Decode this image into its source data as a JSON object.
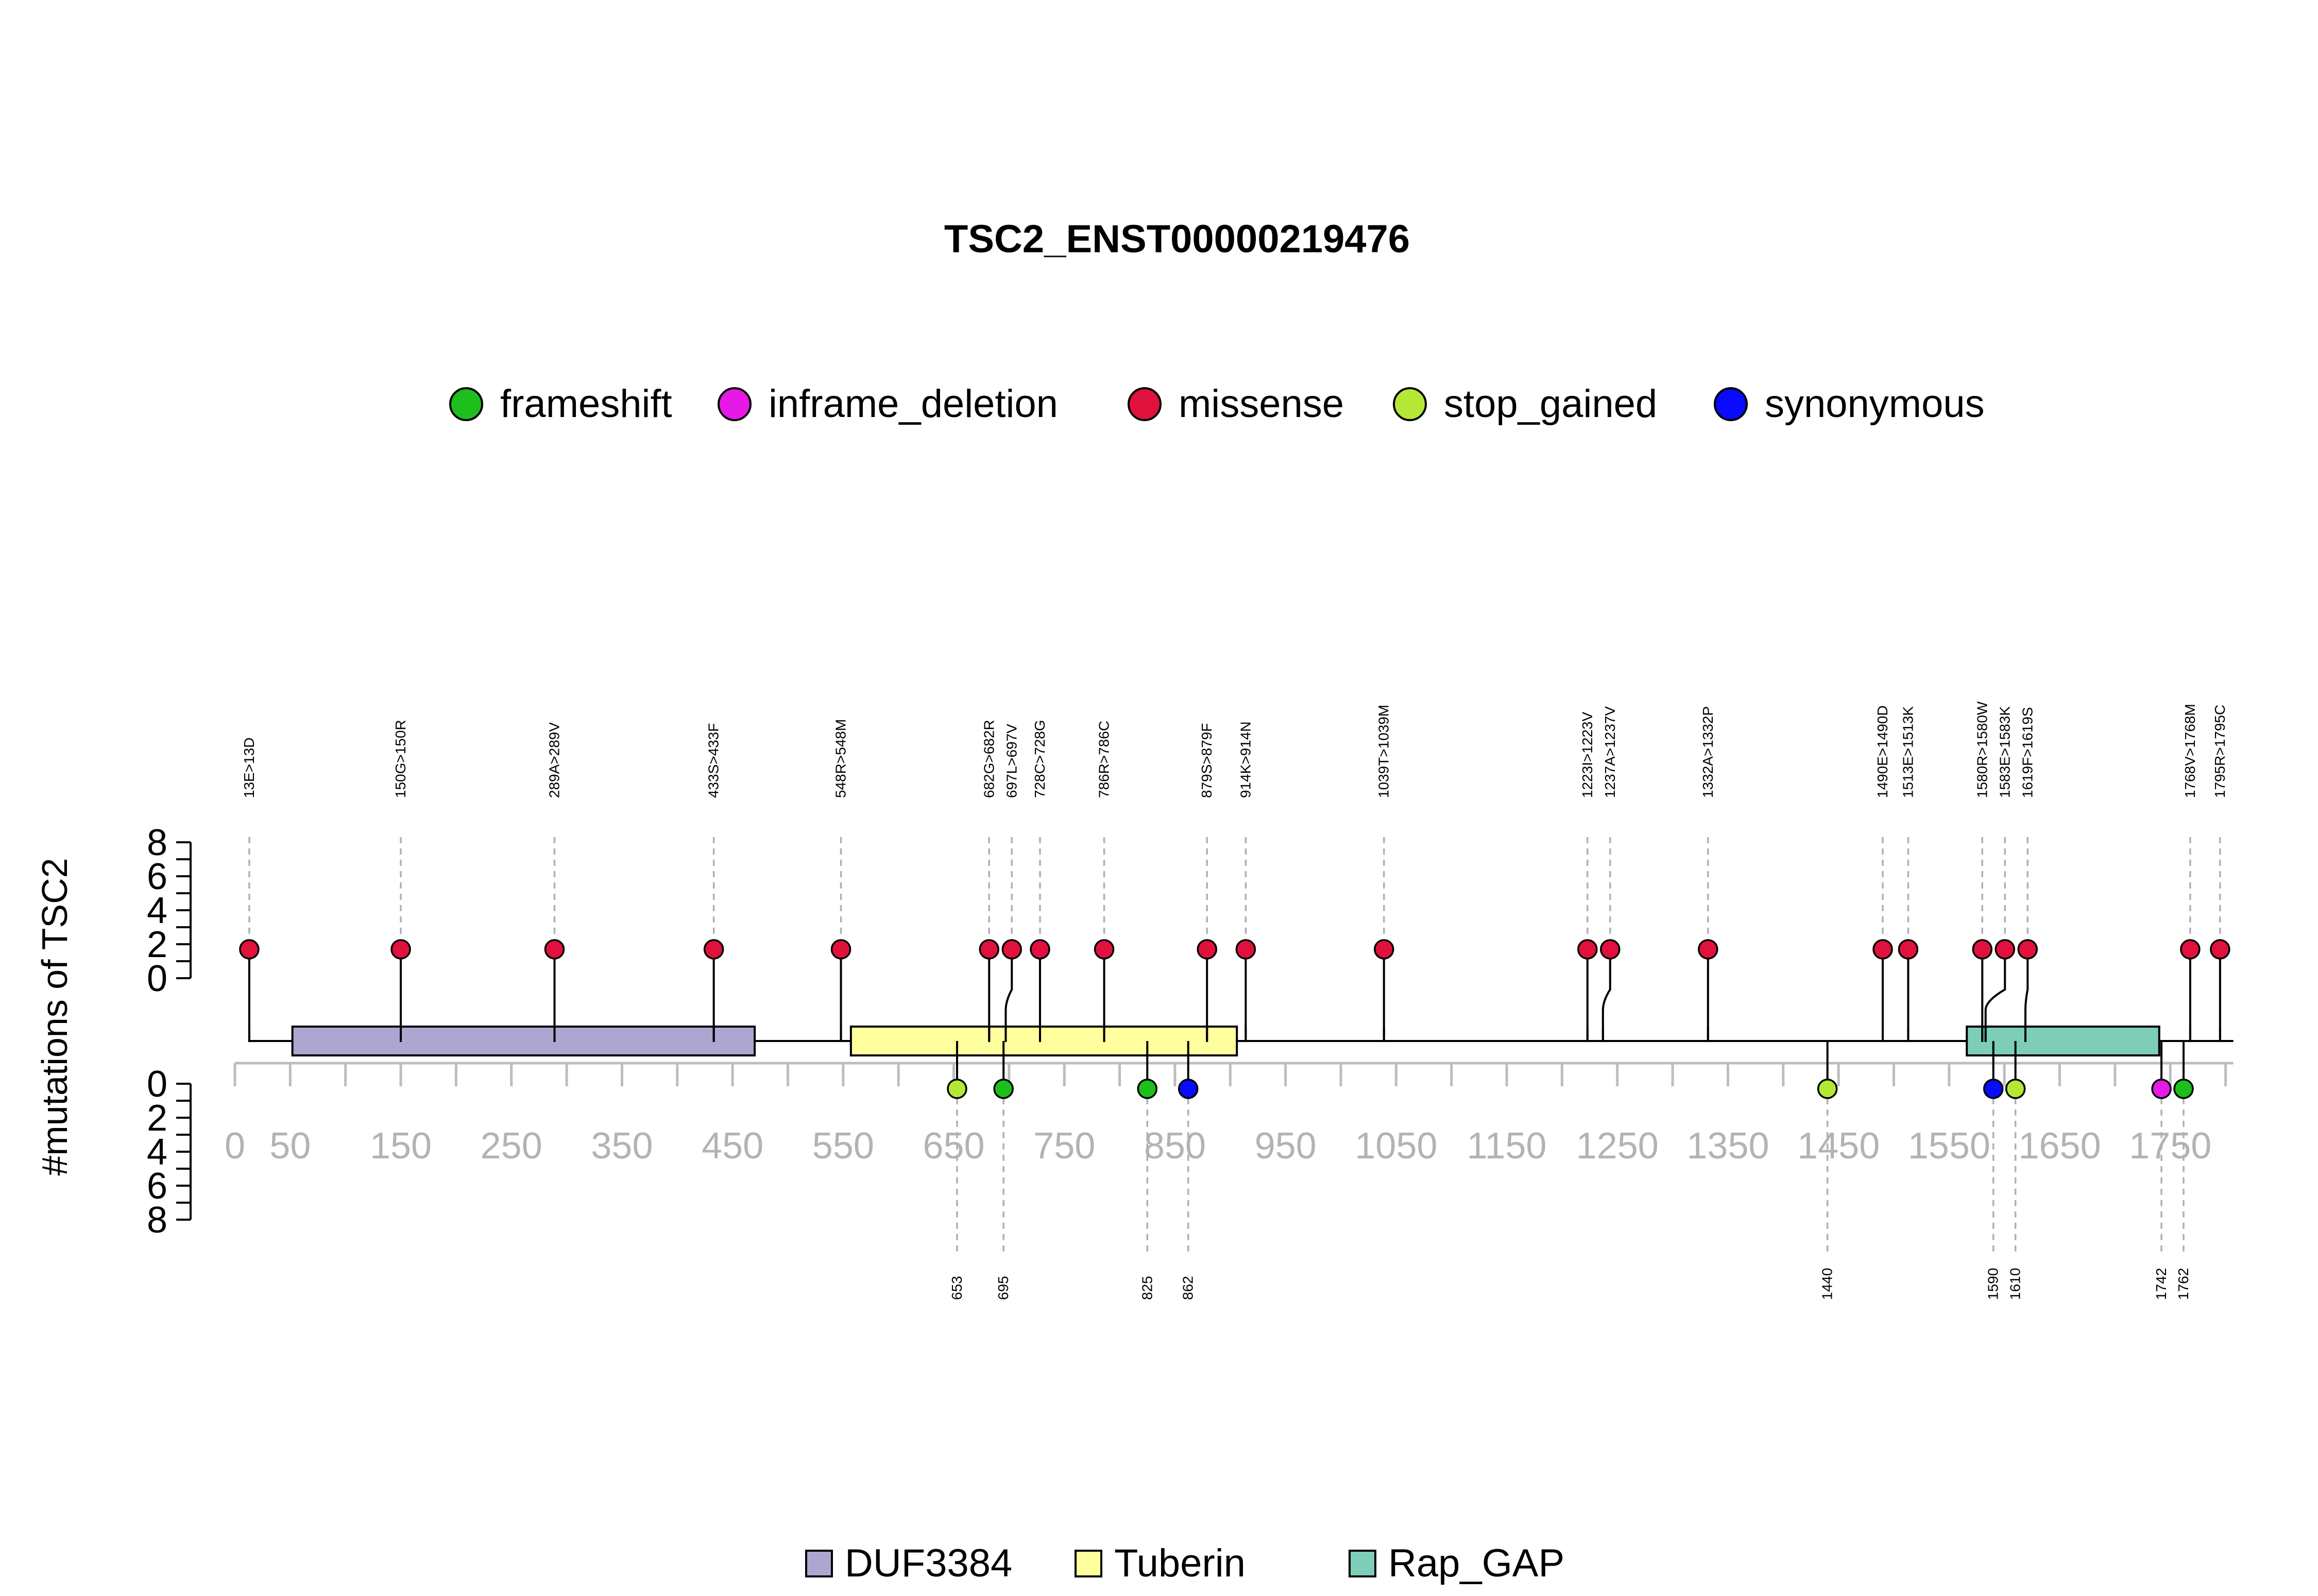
{
  "chart_data": {
    "type": "lollipop",
    "title": "TSC2_ENST00000219476",
    "ylabel": "#mutations of TSC2",
    "protein_length": 1807,
    "x_ticks": [
      0,
      50,
      150,
      250,
      350,
      450,
      550,
      650,
      750,
      850,
      950,
      1050,
      1150,
      1250,
      1350,
      1450,
      1550,
      1650,
      1750
    ],
    "y_ticks_top": [
      "0",
      "2",
      "4",
      "6",
      "8"
    ],
    "y_ticks_bottom": [
      "0",
      "2",
      "4",
      "6",
      "8"
    ],
    "ylim": [
      0,
      8
    ],
    "legend": [
      {
        "name": "frameshift",
        "color": "#1dbf1d"
      },
      {
        "name": "inframe_deletion",
        "color": "#e619e6"
      },
      {
        "name": "missense",
        "color": "#e0113c"
      },
      {
        "name": "stop_gained",
        "color": "#b5e836"
      },
      {
        "name": "synonymous",
        "color": "#0a0aff"
      }
    ],
    "domains": [
      {
        "name": "DUF3384",
        "start": 52,
        "end": 470,
        "color": "#ada6d1"
      },
      {
        "name": "Tuberin",
        "start": 557,
        "end": 906,
        "color": "#ffff9e"
      },
      {
        "name": "Rap_GAP",
        "start": 1566,
        "end": 1740,
        "color": "#7dcdb8"
      }
    ],
    "mutations_top": [
      {
        "label": "13E>13D",
        "pos": 13,
        "count": 1,
        "type": "missense"
      },
      {
        "label": "150G>150R",
        "pos": 150,
        "count": 1,
        "type": "missense"
      },
      {
        "label": "289A>289V",
        "pos": 289,
        "count": 1,
        "type": "missense"
      },
      {
        "label": "433S>433F",
        "pos": 433,
        "count": 1,
        "type": "missense"
      },
      {
        "label": "548R>548M",
        "pos": 548,
        "count": 1,
        "type": "missense"
      },
      {
        "label": "682G>682R",
        "pos": 682,
        "count": 1,
        "type": "missense"
      },
      {
        "label": "697L>697V",
        "pos": 697,
        "count": 1,
        "type": "missense"
      },
      {
        "label": "728C>728G",
        "pos": 728,
        "count": 1,
        "type": "missense"
      },
      {
        "label": "786R>786C",
        "pos": 786,
        "count": 1,
        "type": "missense"
      },
      {
        "label": "879S>879F",
        "pos": 879,
        "count": 1,
        "type": "missense"
      },
      {
        "label": "914K>914N",
        "pos": 914,
        "count": 1,
        "type": "missense"
      },
      {
        "label": "1039T>1039M",
        "pos": 1039,
        "count": 1,
        "type": "missense"
      },
      {
        "label": "1223I>1223V",
        "pos": 1223,
        "count": 1,
        "type": "missense"
      },
      {
        "label": "1237A>1237V",
        "pos": 1237,
        "count": 1,
        "type": "missense"
      },
      {
        "label": "1332A>1332P",
        "pos": 1332,
        "count": 1,
        "type": "missense"
      },
      {
        "label": "1490E>1490D",
        "pos": 1490,
        "count": 1,
        "type": "missense"
      },
      {
        "label": "1513E>1513K",
        "pos": 1513,
        "count": 1,
        "type": "missense"
      },
      {
        "label": "1580R>1580W",
        "pos": 1580,
        "count": 1,
        "type": "missense"
      },
      {
        "label": "1583E>1583K",
        "pos": 1583,
        "count": 1,
        "type": "missense"
      },
      {
        "label": "1619F>1619S",
        "pos": 1619,
        "count": 1,
        "type": "missense"
      },
      {
        "label": "1768V>1768M",
        "pos": 1768,
        "count": 1,
        "type": "missense"
      },
      {
        "label": "1795R>1795C",
        "pos": 1795,
        "count": 1,
        "type": "missense"
      }
    ],
    "mutations_bottom": [
      {
        "label": "653",
        "pos": 653,
        "count": 1,
        "type": "stop_gained"
      },
      {
        "label": "695",
        "pos": 695,
        "count": 1,
        "type": "frameshift"
      },
      {
        "label": "825",
        "pos": 825,
        "count": 1,
        "type": "frameshift"
      },
      {
        "label": "862",
        "pos": 862,
        "count": 1,
        "type": "synonymous"
      },
      {
        "label": "1440",
        "pos": 1440,
        "count": 1,
        "type": "stop_gained"
      },
      {
        "label": "1590",
        "pos": 1590,
        "count": 1,
        "type": "synonymous"
      },
      {
        "label": "1610",
        "pos": 1610,
        "count": 1,
        "type": "stop_gained"
      },
      {
        "label": "1742",
        "pos": 1742,
        "count": 1,
        "type": "inframe_deletion"
      },
      {
        "label": "1762",
        "pos": 1762,
        "count": 1,
        "type": "frameshift"
      }
    ]
  }
}
